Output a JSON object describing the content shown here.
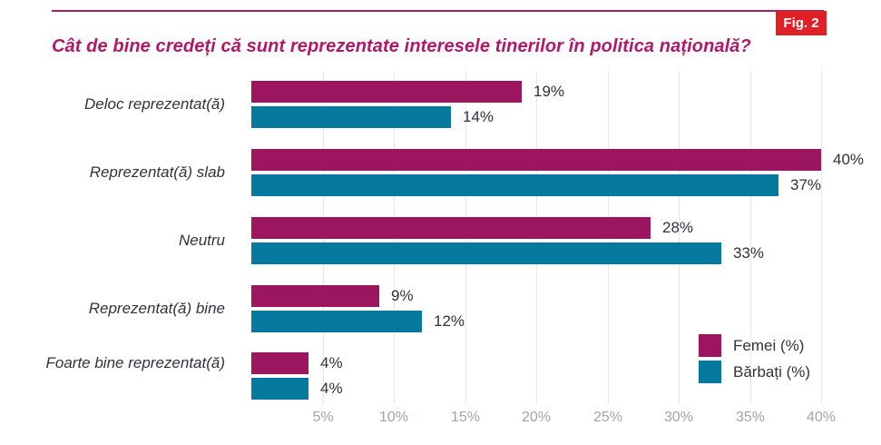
{
  "figure": {
    "badge_label": "Fig. 2",
    "title": "Cât de bine credeți că sunt reprezentate interesele tinerilor în politica națională?"
  },
  "chart_data": {
    "type": "bar",
    "orientation": "horizontal",
    "title": "Cât de bine credeți că sunt reprezentate interesele tinerilor în politica națională?",
    "categories": [
      "Deloc reprezentat(ă)",
      "Reprezentat(ă) slab",
      "Neutru",
      "Reprezentat(ă) bine",
      "Foarte bine reprezentat(ă)"
    ],
    "series": [
      {
        "name": "Femei (%)",
        "color": "#9C155F",
        "values": [
          19,
          40,
          28,
          9,
          4
        ]
      },
      {
        "name": "Bărbați (%)",
        "color": "#06799E",
        "values": [
          14,
          37,
          33,
          12,
          4
        ]
      }
    ],
    "value_suffix": "%",
    "x_ticks": [
      "5%",
      "10%",
      "15%",
      "20%",
      "25%",
      "30%",
      "35%",
      "40%"
    ],
    "xlim": [
      0,
      40
    ],
    "grid": true,
    "legend_position": "bottom-right"
  },
  "colors": {
    "title": "#B1186B",
    "top_rule": "#A02170",
    "badge_bg": "#DE2127",
    "badge_text": "#FFFFFF",
    "gridline": "#E7E7E9",
    "tick_text": "#9EA4AC",
    "label_text": "#32323E"
  }
}
